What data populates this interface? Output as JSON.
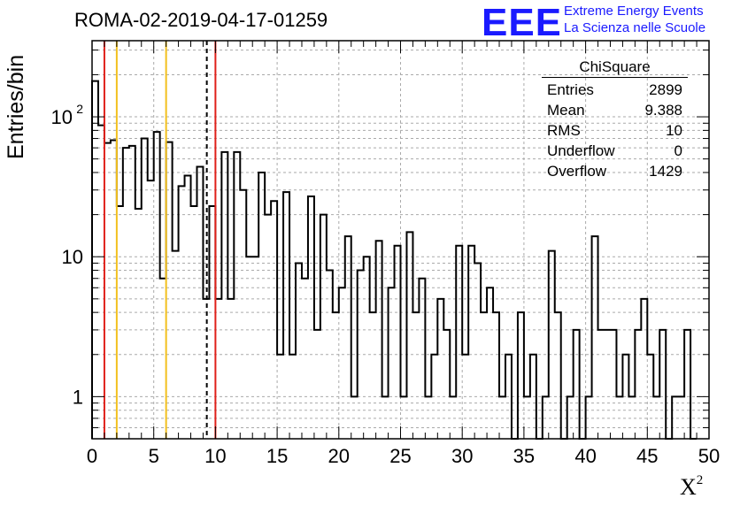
{
  "header": {
    "title": "ROMA-02-2019-04-17-01259",
    "logo_text": "EEE",
    "logo_line1": "Extreme Energy Events",
    "logo_line2": "La Scienza nelle Scuole"
  },
  "stats_box": {
    "title": "ChiSquare",
    "rows": [
      {
        "label": "Entries",
        "value": "2899"
      },
      {
        "label": "Mean",
        "value": "9.388"
      },
      {
        "label": "RMS",
        "value": "10"
      },
      {
        "label": "Underflow",
        "value": "0"
      },
      {
        "label": "Overflow",
        "value": "1429"
      }
    ]
  },
  "chart_data": {
    "type": "bar",
    "histogram": true,
    "title": "ROMA-02-2019-04-17-01259",
    "xlabel": "X",
    "xlabel_superscript": "2",
    "ylabel": "Entries/bin",
    "xlim": [
      0,
      50
    ],
    "ylim": [
      0.5,
      350
    ],
    "yscale": "log",
    "grid": true,
    "bin_width": 0.5,
    "x_ticks": [
      0,
      5,
      10,
      15,
      20,
      25,
      30,
      35,
      40,
      45,
      50
    ],
    "y_ticks": [
      {
        "value": 1,
        "label": "1"
      },
      {
        "value": 10,
        "label": "10"
      },
      {
        "value": 100,
        "label": "10",
        "exponent": "2"
      }
    ],
    "values": [
      180,
      87,
      65,
      68,
      23,
      60,
      62,
      22,
      70,
      35,
      78,
      7,
      66,
      11,
      32,
      38,
      23,
      44,
      5,
      23,
      5,
      56,
      5,
      56,
      30,
      10,
      10,
      40,
      20,
      25,
      2,
      29,
      2,
      9,
      7,
      27,
      3,
      20,
      8,
      4,
      6,
      14,
      1,
      8,
      10,
      4,
      13,
      1,
      6,
      12,
      1,
      15,
      4,
      7,
      1,
      2,
      5,
      3,
      1,
      12,
      2,
      12,
      9,
      4,
      6,
      4,
      1,
      2,
      0.1,
      4,
      1,
      2,
      0.1,
      1,
      11,
      4,
      0.1,
      1,
      3,
      0.1,
      1,
      14,
      3,
      3,
      3,
      1,
      2,
      1,
      3,
      5,
      2,
      1,
      3,
      0.1,
      1,
      1,
      3,
      0.1
    ],
    "vertical_lines": [
      {
        "x": 1,
        "color": "#e0201a",
        "style": "solid"
      },
      {
        "x": 2,
        "color": "#f2c01e",
        "style": "solid"
      },
      {
        "x": 6,
        "color": "#f2c01e",
        "style": "solid"
      },
      {
        "x": 9.3,
        "color": "#000000",
        "style": "dashed"
      },
      {
        "x": 10,
        "color": "#e0201a",
        "style": "solid"
      }
    ]
  }
}
